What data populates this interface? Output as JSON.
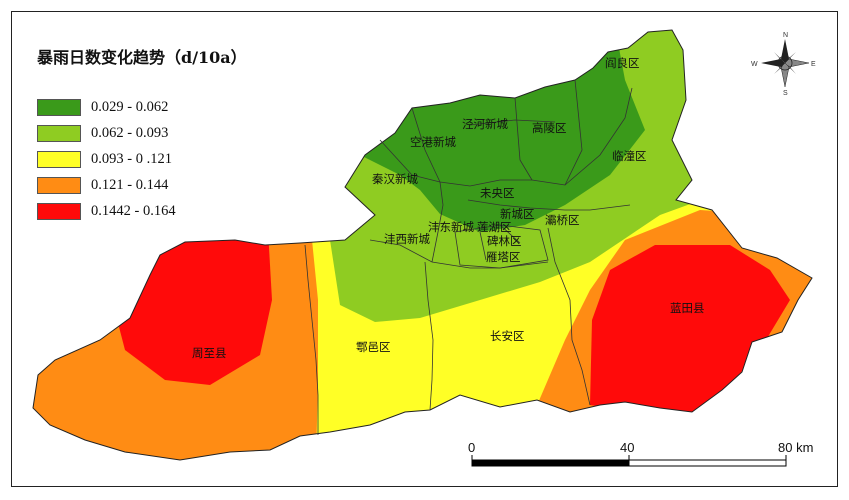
{
  "legend": {
    "title": "暴雨日数变化趋势（d/10a）",
    "items": [
      {
        "label": "0.029 - 0.062",
        "color": "#3a9a1a"
      },
      {
        "label": "0.062 - 0.093",
        "color": "#8fcc22"
      },
      {
        "label": "0.093 - 0 .121",
        "color": "#ffff26"
      },
      {
        "label": "0.121 - 0.144",
        "color": "#ff8c14"
      },
      {
        "label": "0.1442 - 0.164",
        "color": "#ff0a0a"
      }
    ]
  },
  "districts": {
    "yanliang": "阎良区",
    "jinghe": "泾河新城",
    "gaoling": "高陵区",
    "konggang": "空港新城",
    "lintong": "临潼区",
    "qinhan": "秦汉新城",
    "weiyang": "未央区",
    "xincheng": "新城区",
    "baqiao": "灞桥区",
    "fengdong": "沣东新城",
    "lianhu": "莲湖区",
    "beilin": "碑林区",
    "yanta": "雁塔区",
    "fengxi": "沣西新城",
    "zhouzhi": "周至县",
    "huyi": "鄠邑区",
    "changan": "长安区",
    "lantian": "蓝田县"
  },
  "scale_bar": {
    "tick_0": "0",
    "tick_40": "40",
    "tick_80": "80 km"
  },
  "north_arrow": {
    "n": "N",
    "s": "S",
    "e": "E",
    "w": "W"
  }
}
